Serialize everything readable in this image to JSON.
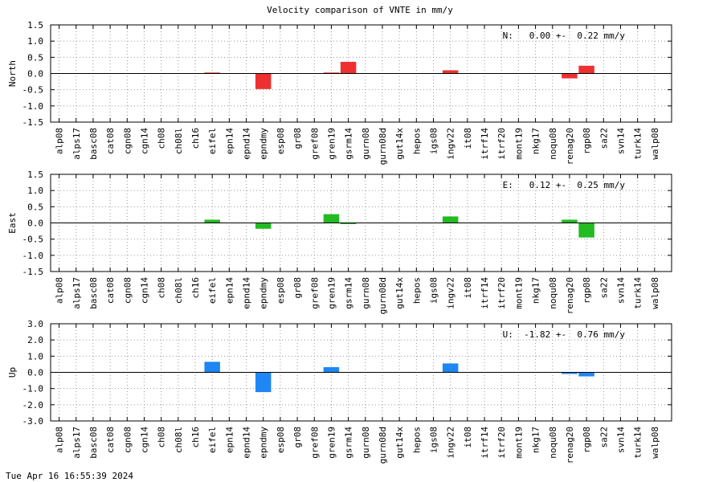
{
  "title": "Velocity comparison of VNTE in mm/y",
  "timestamp": "Tue Apr 16 16:55:39 2024",
  "chart_data": [
    {
      "type": "bar",
      "ylabel": "North",
      "ylim": [
        -1.5,
        1.5
      ],
      "yticks": [
        "1.5",
        "1.0",
        "0.5",
        "0.0",
        "-0.5",
        "-1.0",
        "-1.5"
      ],
      "grid": true,
      "categories": [
        "alp08",
        "alps17",
        "basc08",
        "cat08",
        "cgn08",
        "cgn14",
        "ch08",
        "ch08l",
        "ch16",
        "eifel",
        "epn14",
        "epnd14",
        "epndmy",
        "esp08",
        "gr08",
        "gref08",
        "gren19",
        "gsrm14",
        "gurn08",
        "gurn08d",
        "gut14x",
        "hepos",
        "igs08",
        "ingv22",
        "it08",
        "itrf14",
        "itrf20",
        "mont19",
        "nkg17",
        "noqu08",
        "renag20",
        "rgp08",
        "sa22",
        "svn14",
        "turk14",
        "walp08"
      ],
      "values": [
        0,
        0,
        0,
        0,
        0,
        0,
        0,
        0,
        0,
        0.03,
        0,
        0,
        -0.48,
        0,
        0,
        0,
        0.03,
        0.36,
        0,
        0,
        0,
        0,
        0,
        0.1,
        0,
        0,
        0,
        0,
        0,
        0,
        -0.15,
        0.24,
        0,
        0,
        0,
        0
      ],
      "color": "#ee3030",
      "annotation": "N:   0.00 +-  0.22 mm/y"
    },
    {
      "type": "bar",
      "ylabel": "East",
      "ylim": [
        -1.5,
        1.5
      ],
      "yticks": [
        "1.5",
        "1.0",
        "0.5",
        "0.0",
        "-0.5",
        "-1.0",
        "-1.5"
      ],
      "grid": true,
      "categories": [
        "alp08",
        "alps17",
        "basc08",
        "cat08",
        "cgn08",
        "cgn14",
        "ch08",
        "ch08l",
        "ch16",
        "eifel",
        "epn14",
        "epnd14",
        "epndmy",
        "esp08",
        "gr08",
        "gref08",
        "gren19",
        "gsrm14",
        "gurn08",
        "gurn08d",
        "gut14x",
        "hepos",
        "igs08",
        "ingv22",
        "it08",
        "itrf14",
        "itrf20",
        "mont19",
        "nkg17",
        "noqu08",
        "renag20",
        "rgp08",
        "sa22",
        "svn14",
        "turk14",
        "walp08"
      ],
      "values": [
        0,
        0,
        0,
        0,
        0,
        0,
        0,
        0,
        0,
        0.1,
        0,
        0,
        -0.18,
        0,
        0,
        0,
        0.27,
        -0.02,
        0,
        0,
        0,
        0,
        0,
        0.2,
        0,
        0,
        0,
        0,
        0,
        0,
        0.1,
        -0.45,
        0,
        0,
        0,
        0
      ],
      "color": "#22bb22",
      "annotation": "E:   0.12 +-  0.25 mm/y"
    },
    {
      "type": "bar",
      "ylabel": "Up",
      "ylim": [
        -3.0,
        3.0
      ],
      "yticks": [
        "3.0",
        "2.0",
        "1.0",
        "0.0",
        "-1.0",
        "-2.0",
        "-3.0"
      ],
      "grid": true,
      "categories": [
        "alp08",
        "alps17",
        "basc08",
        "cat08",
        "cgn08",
        "cgn14",
        "ch08",
        "ch08l",
        "ch16",
        "eifel",
        "epn14",
        "epnd14",
        "epndmy",
        "esp08",
        "gr08",
        "gref08",
        "gren19",
        "gsrm14",
        "gurn08",
        "gurn08d",
        "gut14x",
        "hepos",
        "igs08",
        "ingv22",
        "it08",
        "itrf14",
        "itrf20",
        "mont19",
        "nkg17",
        "noqu08",
        "renag20",
        "rgp08",
        "sa22",
        "svn14",
        "turk14",
        "walp08"
      ],
      "values": [
        0,
        0,
        0,
        0,
        0,
        0,
        0,
        0,
        0,
        0.65,
        0,
        0,
        -1.22,
        0,
        0,
        0,
        0.32,
        0,
        0,
        0,
        0,
        0,
        0,
        0.55,
        0,
        0,
        0,
        0,
        0,
        0,
        -0.1,
        -0.25,
        0,
        0,
        0,
        0
      ],
      "color": "#1e86f5",
      "annotation": "U:  -1.82 +-  0.76 mm/y"
    }
  ]
}
